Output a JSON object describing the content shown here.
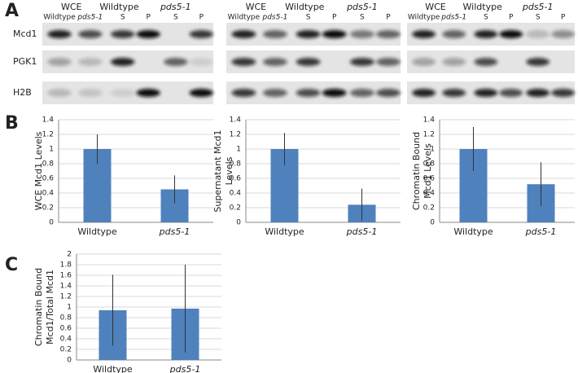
{
  "panels": [
    "A",
    "B",
    "C"
  ],
  "blots": {
    "row_labels": [
      "Mcd1",
      "PGK1",
      "H2B"
    ],
    "groups": [
      {
        "headers": [
          "WCE",
          "Wildtype",
          "pds5-1"
        ],
        "lanes": [
          "Wildtype",
          "pds5-1",
          "S",
          "P",
          "S",
          "P"
        ]
      },
      {
        "headers": [
          "WCE",
          "Wildtype",
          "pds5-1"
        ],
        "lanes": [
          "Wildtype",
          "pds5-1",
          "S",
          "P",
          "S",
          "P"
        ]
      },
      {
        "headers": [
          "WCE",
          "Wildtype",
          "pds5-1"
        ],
        "lanes": [
          "Wildtype",
          "pds5-1",
          "S",
          "P",
          "S",
          "P"
        ]
      }
    ]
  },
  "chart_data": [
    {
      "type": "bar",
      "y_label": [
        "WCE Mcd1 Levels"
      ],
      "categories": [
        "Wildtype",
        "pds5-1"
      ],
      "values": [
        1,
        0.45
      ],
      "errors": [
        0.2,
        0.19
      ],
      "color": "#4f81bd",
      "ylim": [
        0,
        1.4
      ],
      "yticks": [
        0,
        0.2,
        0.4,
        0.6,
        0.8,
        1,
        1.2,
        1.4
      ],
      "grid": true
    },
    {
      "type": "bar",
      "y_label": [
        "Supernatant Mcd1",
        "Levels"
      ],
      "categories": [
        "Wildtype",
        "pds5-1"
      ],
      "values": [
        1,
        0.24
      ],
      "errors": [
        0.22,
        0.22
      ],
      "color": "#4f81bd",
      "ylim": [
        0,
        1.4
      ],
      "yticks": [
        0,
        0.2,
        0.4,
        0.6,
        0.8,
        1,
        1.2,
        1.4
      ],
      "grid": true
    },
    {
      "type": "bar",
      "y_label": [
        "Chromatin Bound",
        "Mcd1 Levels"
      ],
      "categories": [
        "Wildtype",
        "pds5-1"
      ],
      "values": [
        1,
        0.52
      ],
      "errors": [
        0.3,
        0.3
      ],
      "color": "#4f81bd",
      "ylim": [
        0,
        1.4
      ],
      "yticks": [
        0,
        0.2,
        0.4,
        0.6,
        0.8,
        1,
        1.2,
        1.4
      ],
      "grid": true
    },
    {
      "type": "bar",
      "y_label": [
        "Chromatin Bound",
        "Mcd1/Total Mcd1"
      ],
      "categories": [
        "Wildtype",
        "pds5-1"
      ],
      "values": [
        0.94,
        0.97
      ],
      "errors": [
        0.67,
        0.83
      ],
      "color": "#4f81bd",
      "ylim": [
        0,
        2
      ],
      "yticks": [
        0,
        0.2,
        0.4,
        0.6,
        0.8,
        1,
        1.2,
        1.4,
        1.6,
        1.8,
        2
      ],
      "grid": true
    }
  ]
}
